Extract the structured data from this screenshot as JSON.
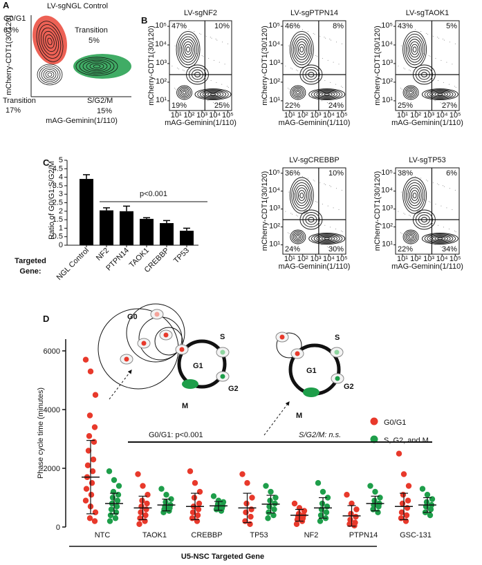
{
  "chart_data": [
    {
      "type": "contour",
      "panel": "A",
      "title": "LV-sgNGL Control",
      "xlabel": "mAG-Geminin(1/110)",
      "ylabel": "mCherry-CDT1(30/120)",
      "gates": [
        "G0/G1",
        "Transition",
        "Transition",
        "S/G2/M"
      ],
      "values": [
        63,
        5,
        17,
        15
      ],
      "value_labels": [
        "63%",
        "5%",
        "17%",
        "15%"
      ],
      "colors": [
        "#e8392b",
        "#111111",
        "#111111",
        "#1e9e4a"
      ]
    },
    {
      "type": "quadrant",
      "panel": "B",
      "title": "LV-sgNF2",
      "xlabel": "mAG-Geminin(1/110)",
      "ylabel": "mCherry-CDT1(30/120)",
      "values": [
        47,
        10,
        19,
        25
      ],
      "value_labels": [
        "47%",
        "10%",
        "19%",
        "25%"
      ],
      "xscale": "log",
      "yscale": "log",
      "xlim": [
        3,
        200000
      ],
      "ylim": [
        3,
        200000
      ],
      "xticks": [
        {
          "value": 10,
          "label": "10¹"
        },
        {
          "value": 100,
          "label": "10²"
        },
        {
          "value": 1000,
          "label": "10³"
        },
        {
          "value": 10000,
          "label": "10⁴"
        },
        {
          "value": 100000,
          "label": "10⁵"
        }
      ],
      "yticks": [
        {
          "value": 10,
          "label": "10¹"
        },
        {
          "value": 100,
          "label": "10²"
        },
        {
          "value": 1000,
          "label": "10³"
        },
        {
          "value": 10000,
          "label": "10⁴"
        },
        {
          "value": 100000,
          "label": "10⁵"
        }
      ]
    },
    {
      "type": "quadrant",
      "title": "LV-sgPTPN14",
      "xlabel": "mAG-Geminin(1/110)",
      "ylabel": "mCherry-CDT1(30/120)",
      "values": [
        46,
        8,
        22,
        24
      ],
      "value_labels": [
        "46%",
        "8%",
        "22%",
        "24%"
      ],
      "xscale": "log",
      "yscale": "log",
      "xlim": [
        3,
        200000
      ],
      "ylim": [
        3,
        200000
      ],
      "xticks": [
        {
          "value": 10,
          "label": "10¹"
        },
        {
          "value": 100,
          "label": "10²"
        },
        {
          "value": 1000,
          "label": "10³"
        },
        {
          "value": 10000,
          "label": "10⁴"
        },
        {
          "value": 100000,
          "label": "10⁵"
        }
      ],
      "yticks": [
        {
          "value": 10,
          "label": "10¹"
        },
        {
          "value": 100,
          "label": "10²"
        },
        {
          "value": 1000,
          "label": "10³"
        },
        {
          "value": 10000,
          "label": "10⁴"
        },
        {
          "value": 100000,
          "label": "10⁵"
        }
      ]
    },
    {
      "type": "quadrant",
      "title": "LV-sgTAOK1",
      "xlabel": "mAG-Geminin(1/110)",
      "ylabel": "mCherry-CDT1(30/120)",
      "values": [
        43,
        5,
        25,
        27
      ],
      "value_labels": [
        "43%",
        "5%",
        "25%",
        "27%"
      ],
      "xscale": "log",
      "yscale": "log",
      "xlim": [
        3,
        200000
      ],
      "ylim": [
        3,
        200000
      ],
      "xticks": [
        {
          "value": 10,
          "label": "10¹"
        },
        {
          "value": 100,
          "label": "10²"
        },
        {
          "value": 1000,
          "label": "10³"
        },
        {
          "value": 10000,
          "label": "10⁴"
        },
        {
          "value": 100000,
          "label": "10⁵"
        }
      ],
      "yticks": [
        {
          "value": 10,
          "label": "10¹"
        },
        {
          "value": 100,
          "label": "10²"
        },
        {
          "value": 1000,
          "label": "10³"
        },
        {
          "value": 10000,
          "label": "10⁴"
        },
        {
          "value": 100000,
          "label": "10⁵"
        }
      ]
    },
    {
      "type": "quadrant",
      "title": "LV-sgCREBBP",
      "xlabel": "mAG-Geminin(1/110)",
      "ylabel": "mCherry-CDT1(30/120)",
      "values": [
        36,
        10,
        24,
        30
      ],
      "value_labels": [
        "36%",
        "10%",
        "24%",
        "30%"
      ],
      "xscale": "log",
      "yscale": "log",
      "xlim": [
        3,
        200000
      ],
      "ylim": [
        3,
        200000
      ],
      "xticks": [
        {
          "value": 10,
          "label": "10¹"
        },
        {
          "value": 100,
          "label": "10²"
        },
        {
          "value": 1000,
          "label": "10³"
        },
        {
          "value": 10000,
          "label": "10⁴"
        },
        {
          "value": 100000,
          "label": "10⁵"
        }
      ],
      "yticks": [
        {
          "value": 10,
          "label": "10¹"
        },
        {
          "value": 100,
          "label": "10²"
        },
        {
          "value": 1000,
          "label": "10³"
        },
        {
          "value": 10000,
          "label": "10⁴"
        },
        {
          "value": 100000,
          "label": "10⁵"
        }
      ]
    },
    {
      "type": "quadrant",
      "title": "LV-sgTP53",
      "xlabel": "mAG-Geminin(1/110)",
      "ylabel": "mCherry-CDT1(30/120)",
      "values": [
        38,
        6,
        22,
        34
      ],
      "value_labels": [
        "38%",
        "6%",
        "22%",
        "34%"
      ],
      "xscale": "log",
      "yscale": "log",
      "xlim": [
        3,
        200000
      ],
      "ylim": [
        3,
        200000
      ],
      "xticks": [
        {
          "value": 10,
          "label": "10¹"
        },
        {
          "value": 100,
          "label": "10²"
        },
        {
          "value": 1000,
          "label": "10³"
        },
        {
          "value": 10000,
          "label": "10⁴"
        },
        {
          "value": 100000,
          "label": "10⁵"
        }
      ],
      "yticks": [
        {
          "value": 10,
          "label": "10¹"
        },
        {
          "value": 100,
          "label": "10²"
        },
        {
          "value": 1000,
          "label": "10³"
        },
        {
          "value": 10000,
          "label": "10⁴"
        },
        {
          "value": 100000,
          "label": "10⁵"
        }
      ]
    },
    {
      "type": "bar",
      "panel": "C",
      "ylabel": "Ratio of G0/G1:S/G2/M",
      "categories": [
        "NGL Control",
        "NF2",
        "PTPN14",
        "TAOK1",
        "CREBBP",
        "TP53"
      ],
      "values": [
        3.9,
        2.05,
        2.0,
        1.55,
        1.3,
        0.85
      ],
      "errors": [
        0.25,
        0.15,
        0.3,
        0.07,
        0.15,
        0.15
      ],
      "color": "#000000",
      "ylim": [
        0,
        5
      ],
      "yticks": [
        0,
        0.5,
        1,
        1.5,
        2,
        2.5,
        3,
        3.5,
        4,
        4.5,
        5
      ],
      "annotation": "p<0.001",
      "group_label": [
        "Targeted",
        "Gene:"
      ]
    },
    {
      "type": "dot",
      "panel": "D",
      "ylabel": "Phase cycle time (minutes)",
      "xlabel": "U5-NSC Targeted Gene",
      "categories": [
        "NTC",
        "TAOK1",
        "CREBBP",
        "TP53",
        "NF2",
        "PTPN14",
        "GSC-131"
      ],
      "ylim": [
        0,
        6400
      ],
      "yticks": [
        0,
        2000,
        4000,
        6000
      ],
      "annotations": [
        "G0/G1: p<0.001",
        "S/G2/M: n.s."
      ],
      "series": [
        {
          "name": "G0/G1",
          "color": "#e8392b",
          "values": [
            [
              5700,
              5300,
              4500,
              3800,
              3400,
              3100,
              2900,
              2600,
              2300,
              2100,
              1900,
              1700,
              1500,
              1300,
              1100,
              900,
              700,
              500,
              300,
              200
            ],
            [
              1800,
              1400,
              1100,
              900,
              800,
              700,
              600,
              500,
              400,
              300,
              200,
              100
            ],
            [
              1900,
              1500,
              1200,
              1000,
              800,
              700,
              600,
              500,
              400,
              300,
              200
            ],
            [
              1800,
              1500,
              1000,
              800,
              600,
              500,
              350,
              200,
              100
            ],
            [
              800,
              650,
              550,
              450,
              400,
              350,
              300,
              250,
              200,
              100
            ],
            [
              1100,
              800,
              600,
              450,
              350,
              250,
              150,
              100,
              50
            ],
            [
              2500,
              1800,
              1400,
              1100,
              900,
              800,
              650,
              500,
              400,
              300,
              200
            ]
          ],
          "mean": [
            1700,
            650,
            700,
            650,
            400,
            380,
            700
          ],
          "sd": [
            1250,
            400,
            450,
            500,
            200,
            350,
            450
          ]
        },
        {
          "name": "S, G2, and M",
          "color": "#1e9e4a",
          "values": [
            [
              1900,
              1600,
              1400,
              1200,
              1100,
              1000,
              900,
              800,
              700,
              600,
              500,
              400,
              300,
              200
            ],
            [
              1300,
              1100,
              950,
              850,
              750,
              700,
              650,
              600,
              550,
              500
            ],
            [
              1050,
              900,
              850,
              780,
              720,
              680,
              640,
              600,
              550
            ],
            [
              1400,
              1200,
              1000,
              900,
              800,
              700,
              600,
              500,
              400,
              300
            ],
            [
              1500,
              1200,
              1000,
              800,
              700,
              600,
              500,
              400,
              300,
              200
            ],
            [
              1400,
              1200,
              1000,
              900,
              800,
              750,
              700,
              600,
              500
            ],
            [
              1300,
              1100,
              950,
              850,
              750,
              700,
              600,
              500,
              400
            ]
          ],
          "mean": [
            800,
            750,
            720,
            780,
            650,
            800,
            750
          ],
          "sd": [
            350,
            200,
            150,
            300,
            350,
            250,
            250
          ]
        }
      ]
    }
  ],
  "diagrams": [
    [
      "G0",
      "G1",
      "S",
      "G2",
      "M"
    ],
    [
      "G1",
      "S",
      "G2",
      "M"
    ]
  ]
}
